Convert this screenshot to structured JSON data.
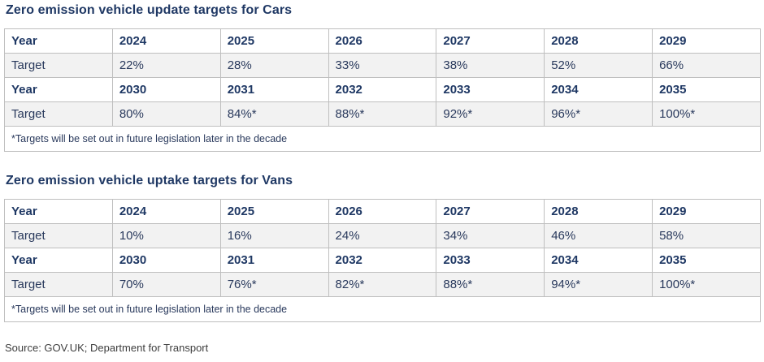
{
  "colors": {
    "heading_text": "#1f3864",
    "cell_text": "#29395c",
    "row_shade": "#f2f2f2",
    "table_border": "#bfbfbf",
    "source_text": "#3d3d3d"
  },
  "tables": {
    "cars": {
      "title": "Zero emission vehicle update targets for Cars",
      "year_label": "Year",
      "target_label": "Target",
      "years1": [
        "2024",
        "2025",
        "2026",
        "2027",
        "2028",
        "2029"
      ],
      "targets1": [
        "22%",
        "28%",
        "33%",
        "38%",
        "52%",
        "66%"
      ],
      "years2": [
        "2030",
        "2031",
        "2032",
        "2033",
        "2034",
        "2035"
      ],
      "targets2": [
        "80%",
        "84%*",
        "88%*",
        "92%*",
        "96%*",
        "100%*"
      ],
      "footnote": "*Targets will be set out in future legislation later in the decade"
    },
    "vans": {
      "title": "Zero emission vehicle uptake targets for Vans",
      "year_label": "Year",
      "target_label": "Target",
      "years1": [
        "2024",
        "2025",
        "2026",
        "2027",
        "2028",
        "2029"
      ],
      "targets1": [
        "10%",
        "16%",
        "24%",
        "34%",
        "46%",
        "58%"
      ],
      "years2": [
        "2030",
        "2031",
        "2032",
        "2033",
        "2034",
        "2035"
      ],
      "targets2": [
        "70%",
        "76%*",
        "82%*",
        "88%*",
        "94%*",
        "100%*"
      ],
      "footnote": "*Targets will be set out in future legislation later in the decade"
    }
  },
  "source": "Source: GOV.UK; Department for Transport"
}
